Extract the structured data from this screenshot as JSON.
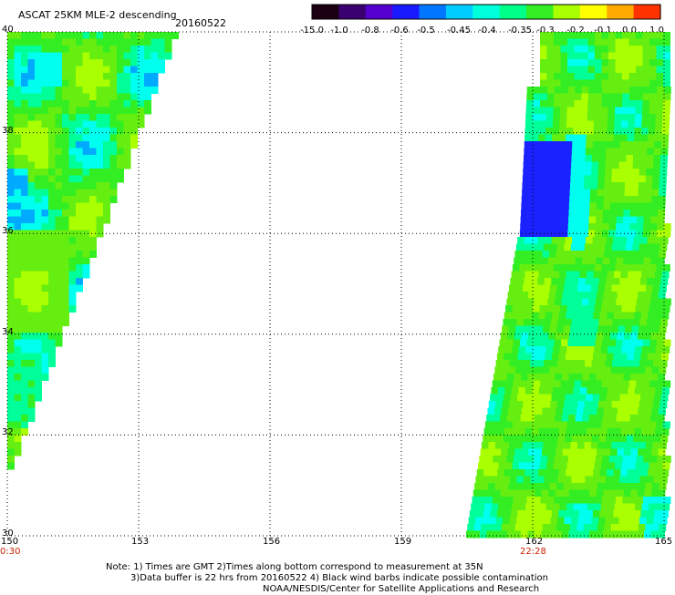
{
  "header": {
    "title": "ASCAT 25KM MLE-2 descending",
    "date": "20160522"
  },
  "colorbar": {
    "labels": [
      "-15.0",
      "-1.0",
      "-0.8",
      "-0.6",
      "-0.5",
      "-0.45",
      "-0.4",
      "-0.35",
      "-0.3",
      "-0.2",
      "-0.1",
      "0.0",
      "1.0"
    ],
    "colors": [
      "#1a0010",
      "#3a0070",
      "#5500cc",
      "#1a1aff",
      "#0077ff",
      "#00ccff",
      "#00ffdd",
      "#00ff88",
      "#33ee22",
      "#aaff00",
      "#ffff00",
      "#ffaa00",
      "#ff3300"
    ]
  },
  "map": {
    "lon_ticks": [
      "150",
      "153",
      "156",
      "159",
      "162",
      "165"
    ],
    "lat_ticks": [
      "40",
      "38",
      "36",
      "34",
      "32",
      "30"
    ],
    "lon_range": [
      150,
      165
    ],
    "lat_range": [
      30,
      40
    ],
    "time_labels": [
      {
        "lon": 150,
        "text": "0:30"
      },
      {
        "lon": 162,
        "text": "22:28"
      }
    ]
  },
  "notes": {
    "line1": "Note: 1) Times are GMT 2)Times along bottom correspond to measurement at 35N",
    "line2": "3)Data buffer is 22 hrs from 20160522 4) Black wind barbs indicate possible contamination",
    "line3": "NOAA/NESDIS/Center for Satellite Applications and Research"
  }
}
